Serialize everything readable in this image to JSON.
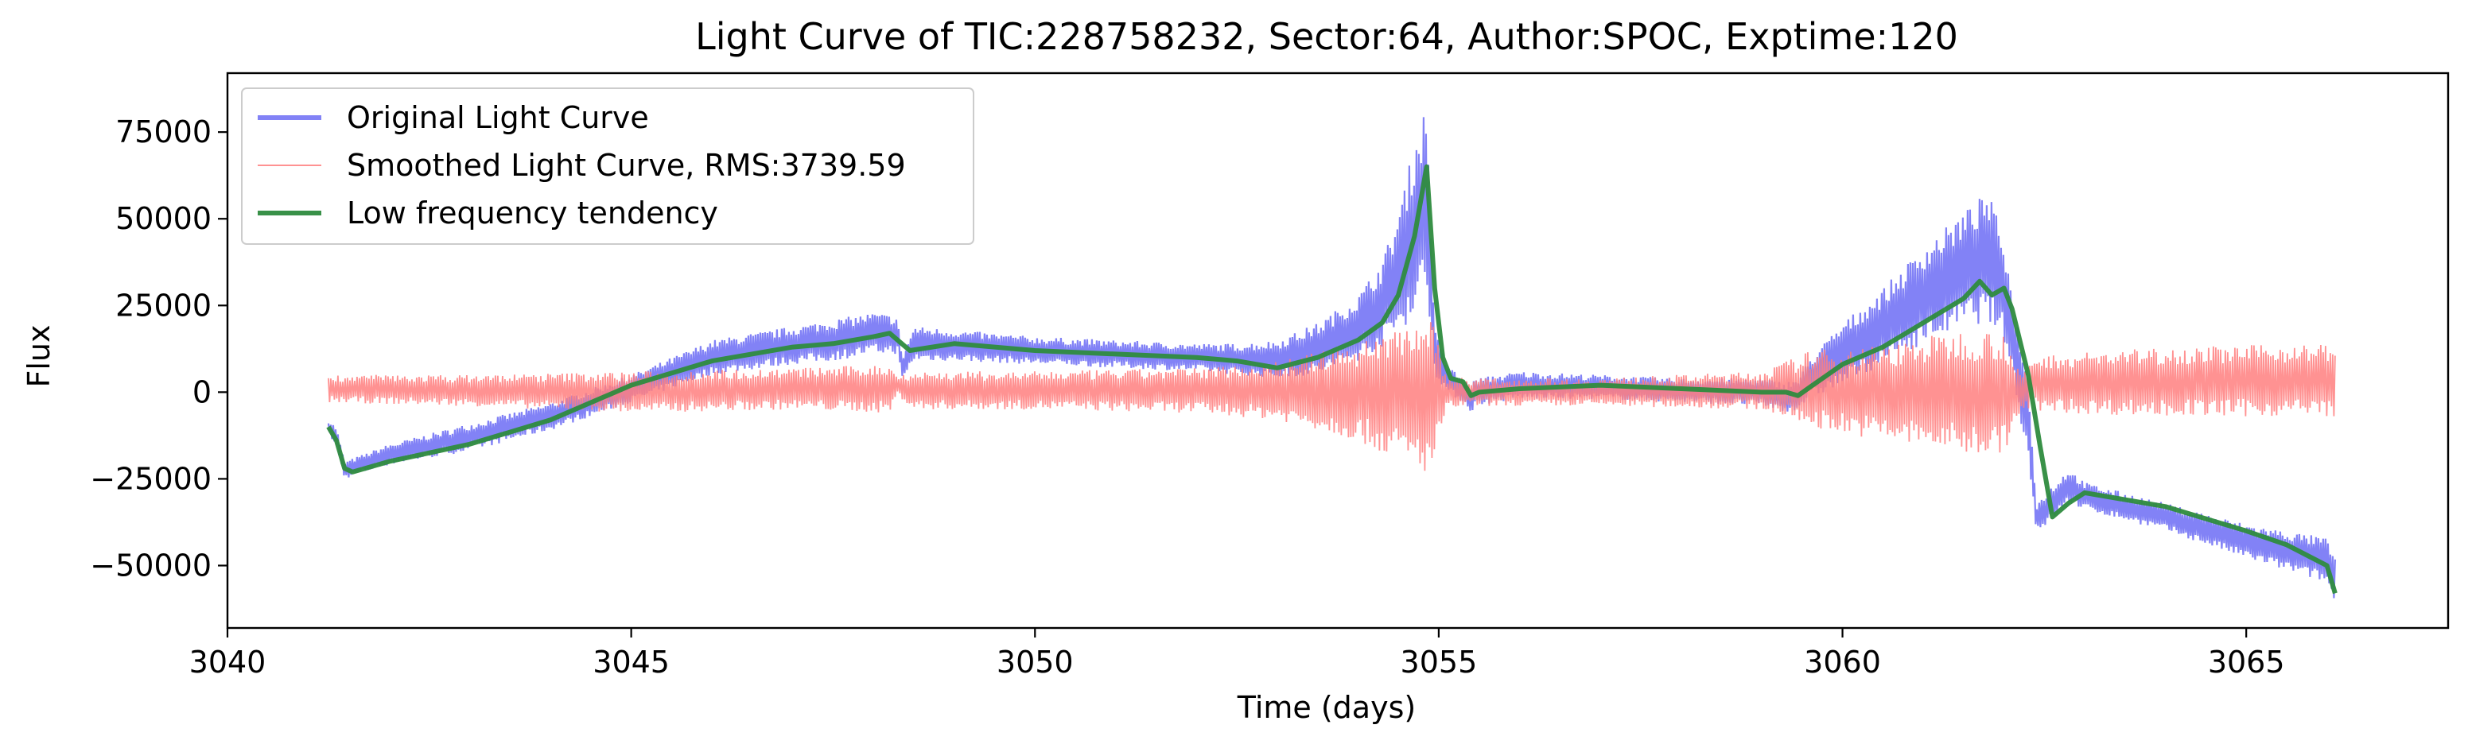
{
  "chart_data": {
    "type": "line",
    "title": "Light Curve of TIC:228758232, Sector:64, Author:SPOC, Exptime:120",
    "xlabel": "Time (days)",
    "ylabel": "Flux",
    "xlim": [
      3040,
      3067.5
    ],
    "ylim": [
      -68000,
      92000
    ],
    "x_ticks": [
      3040,
      3045,
      3050,
      3055,
      3060,
      3065
    ],
    "y_ticks": [
      -50000,
      -25000,
      0,
      25000,
      50000,
      75000
    ],
    "x_tick_labels": [
      "3040",
      "3045",
      "3050",
      "3055",
      "3060",
      "3065"
    ],
    "y_tick_labels": [
      "−50000",
      "−25000",
      "0",
      "25000",
      "50000",
      "75000"
    ],
    "grid": false,
    "legend_position": "upper left",
    "series": [
      {
        "name": "Original Light Curve",
        "color": "#7b7bf5",
        "style": "band",
        "x": [
          3041.25,
          3041.35,
          3041.45,
          3042.0,
          3043.0,
          3044.0,
          3045.0,
          3046.0,
          3047.0,
          3047.5,
          3048.0,
          3048.3,
          3048.35,
          3048.5,
          3049.0,
          3050.0,
          3051.0,
          3052.0,
          3052.5,
          3053.0,
          3053.5,
          3054.0,
          3054.3,
          3054.5,
          3054.7,
          3054.85,
          3054.95,
          3055.1,
          3055.3,
          3055.4,
          3055.45,
          3056.0,
          3057.0,
          3058.0,
          3059.0,
          3059.3,
          3059.45,
          3059.6,
          3060.0,
          3060.5,
          3061.0,
          3061.5,
          3061.8,
          3062.0,
          3062.1,
          3062.3,
          3062.4,
          3062.55,
          3062.8,
          3063.0,
          3064.0,
          3065.0,
          3066.0,
          3066.1
        ],
        "low": [
          -12000,
          -16000,
          -25000,
          -21000,
          -17000,
          -11000,
          -3000,
          5000,
          8000,
          9000,
          11000,
          11000,
          3000,
          9000,
          9000,
          8000,
          7000,
          6000,
          5000,
          4000,
          5000,
          9000,
          13000,
          17000,
          22000,
          30000,
          5000,
          0,
          -3000,
          -6000,
          -4000,
          -2000,
          -2000,
          -3000,
          -4000,
          -6000,
          -5000,
          -2000,
          2000,
          8000,
          14000,
          19000,
          20000,
          15000,
          5000,
          -20000,
          -40000,
          -38000,
          -32000,
          -34000,
          -40000,
          -48000,
          -55000,
          -62000
        ],
        "high": [
          -8000,
          -10000,
          -20000,
          -15000,
          -9000,
          -3000,
          5000,
          15000,
          19000,
          21000,
          23000,
          22000,
          10000,
          19000,
          18000,
          16000,
          15000,
          14000,
          14000,
          15000,
          20000,
          28000,
          38000,
          52000,
          72000,
          84000,
          18000,
          8000,
          4000,
          2000,
          4000,
          6000,
          5000,
          4000,
          4000,
          3000,
          4000,
          10000,
          20000,
          30000,
          42000,
          52000,
          58000,
          45000,
          28000,
          5000,
          -32000,
          -28000,
          -22000,
          -26000,
          -32000,
          -38000,
          -42000,
          -48000
        ]
      },
      {
        "name": "Smoothed Light Curve, RMS:3739.59",
        "color": "#ff7f7f",
        "style": "band",
        "x": [
          3041.25,
          3043.0,
          3045.0,
          3047.0,
          3048.2,
          3048.3,
          3048.5,
          3050.0,
          3052.0,
          3053.0,
          3054.0,
          3054.5,
          3054.9,
          3055.1,
          3055.4,
          3057.0,
          3059.0,
          3059.6,
          3060.5,
          3061.5,
          3062.0,
          3062.2,
          3062.35,
          3062.6,
          3064.0,
          3066.0,
          3066.1
        ],
        "low": [
          -3000,
          -4000,
          -6000,
          -5000,
          -6000,
          -1000,
          -5000,
          -5000,
          -6000,
          -8000,
          -14000,
          -20000,
          -24000,
          -5000,
          -4000,
          -4000,
          -5000,
          -10000,
          -14000,
          -18000,
          -18000,
          -6000,
          -5000,
          -6000,
          -7000,
          -7000,
          -7000
        ],
        "high": [
          5000,
          5000,
          6000,
          7000,
          8000,
          5000,
          6000,
          6000,
          7000,
          9000,
          14000,
          20000,
          22000,
          5000,
          4000,
          4000,
          6000,
          12000,
          14000,
          18000,
          18000,
          5000,
          10000,
          11000,
          13000,
          14000,
          14000
        ]
      },
      {
        "name": "Low frequency tendency",
        "color": "#2e8b3e",
        "style": "line",
        "x": [
          3041.25,
          3041.35,
          3041.45,
          3041.55,
          3042.0,
          3043.0,
          3044.0,
          3045.0,
          3046.0,
          3047.0,
          3047.5,
          3048.0,
          3048.2,
          3048.35,
          3048.45,
          3049.0,
          3050.0,
          3051.0,
          3052.0,
          3052.5,
          3053.0,
          3053.5,
          3054.0,
          3054.3,
          3054.5,
          3054.7,
          3054.85,
          3054.95,
          3055.05,
          3055.15,
          3055.3,
          3055.4,
          3055.5,
          3056.0,
          3057.0,
          3058.0,
          3059.0,
          3059.3,
          3059.45,
          3059.6,
          3060.0,
          3060.5,
          3061.0,
          3061.5,
          3061.7,
          3061.85,
          3062.0,
          3062.1,
          3062.3,
          3062.45,
          3062.6,
          3062.8,
          3063.0,
          3064.0,
          3065.0,
          3065.5,
          3066.0,
          3066.1
        ],
        "y": [
          -10000,
          -14000,
          -22000,
          -23000,
          -20000,
          -15000,
          -8000,
          2000,
          9000,
          13000,
          14000,
          16000,
          17000,
          14000,
          12000,
          14000,
          12000,
          11000,
          10000,
          9000,
          7000,
          10000,
          15000,
          20000,
          28000,
          45000,
          65000,
          30000,
          10000,
          4000,
          3000,
          -1000,
          0,
          1000,
          2000,
          1000,
          0,
          0,
          -1000,
          1500,
          8000,
          13000,
          20000,
          27000,
          32000,
          28000,
          30000,
          24000,
          5000,
          -16000,
          -36000,
          -32000,
          -29000,
          -33000,
          -40000,
          -44000,
          -50000,
          -58000
        ]
      }
    ]
  }
}
